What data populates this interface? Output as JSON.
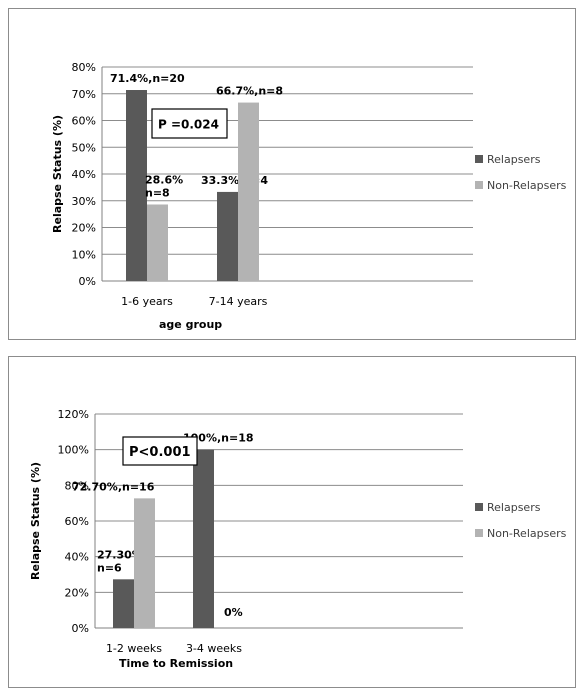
{
  "chart_data": [
    {
      "type": "bar",
      "categories": [
        "1-6 years",
        "7-14 years"
      ],
      "series": [
        {
          "name": "Relapsers",
          "values": [
            71.4,
            33.3
          ],
          "color": "#595959"
        },
        {
          "name": "Non-Relapsers",
          "values": [
            28.6,
            66.7
          ],
          "color": "#b3b3b3"
        }
      ],
      "data_labels": [
        [
          "71.4%,n=20",
          "33.3%,n=4"
        ],
        [
          "28.6%\nn=8",
          "66.7%,n=8"
        ]
      ],
      "ylabel": "Relapse Status (%)",
      "xlabel": "age group",
      "ylim": [
        0,
        80
      ],
      "yticks": [
        0,
        10,
        20,
        30,
        40,
        50,
        60,
        70,
        80
      ],
      "ytick_labels": [
        "0%",
        "10%",
        "20%",
        "30%",
        "40%",
        "50%",
        "60%",
        "70%",
        "80%"
      ],
      "annotation": "P =0.024",
      "legend_position": "right",
      "grid": true
    },
    {
      "type": "bar",
      "categories": [
        "1-2 weeks",
        "3-4 weeks"
      ],
      "series": [
        {
          "name": "Relapsers",
          "values": [
            27.3,
            100
          ],
          "color": "#595959"
        },
        {
          "name": "Non-Relapsers",
          "values": [
            72.7,
            0
          ],
          "color": "#b3b3b3"
        }
      ],
      "data_labels": [
        [
          "27.30%\nn=6",
          "100%,n=18"
        ],
        [
          "72.70%,n=16",
          "0%"
        ]
      ],
      "ylabel": "Relapse Status (%)",
      "xlabel": "Time to Remission",
      "ylim": [
        0,
        120
      ],
      "yticks": [
        0,
        20,
        40,
        60,
        80,
        100,
        120
      ],
      "ytick_labels": [
        "0%",
        "20%",
        "40%",
        "60%",
        "80%",
        "100%",
        "120%"
      ],
      "annotation": "P<0.001",
      "legend_position": "right",
      "grid": true
    }
  ]
}
